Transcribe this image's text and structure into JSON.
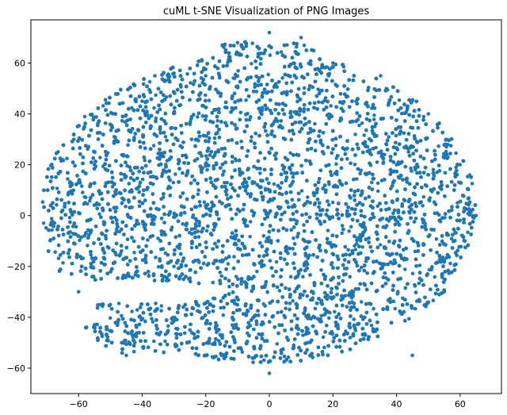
{
  "chart_data": {
    "type": "scatter",
    "title": "cuML t-SNE Visualization of PNG Images",
    "xlabel": "",
    "ylabel": "",
    "xlim": [
      -75,
      73
    ],
    "ylim": [
      -70,
      77
    ],
    "xticks": [
      -60,
      -40,
      -20,
      0,
      20,
      40,
      60
    ],
    "yticks": [
      -60,
      -40,
      -20,
      0,
      20,
      40,
      60
    ],
    "xtick_labels": [
      "−60",
      "−40",
      "−20",
      "0",
      "20",
      "40",
      "60"
    ],
    "ytick_labels": [
      "−60",
      "−40",
      "−20",
      "0",
      "20",
      "40",
      "60"
    ],
    "grid": false,
    "legend": "none",
    "marker_color": "#1f77b4",
    "n_points": 10000,
    "distribution": {
      "x_range": [
        -72,
        67
      ],
      "y_range": [
        -63,
        73
      ],
      "approx_center": [
        -2,
        -8
      ],
      "sample_points": [
        [
          -71,
          -3
        ],
        [
          -65,
          22
        ],
        [
          -60,
          -30
        ],
        [
          -55,
          20
        ],
        [
          -50,
          -35
        ],
        [
          -45,
          -55
        ],
        [
          -40,
          45
        ],
        [
          -36,
          55
        ],
        [
          -30,
          -20
        ],
        [
          -20,
          55
        ],
        [
          -15,
          -55
        ],
        [
          -10,
          68
        ],
        [
          -5,
          0
        ],
        [
          0,
          72
        ],
        [
          0,
          -62
        ],
        [
          5,
          30
        ],
        [
          10,
          70
        ],
        [
          12,
          -50
        ],
        [
          20,
          60
        ],
        [
          25,
          0
        ],
        [
          30,
          -40
        ],
        [
          35,
          55
        ],
        [
          40,
          20
        ],
        [
          45,
          -55
        ],
        [
          50,
          40
        ],
        [
          55,
          -30
        ],
        [
          60,
          20
        ],
        [
          65,
          0
        ],
        [
          -25,
          -45
        ],
        [
          15,
          10
        ]
      ]
    }
  }
}
